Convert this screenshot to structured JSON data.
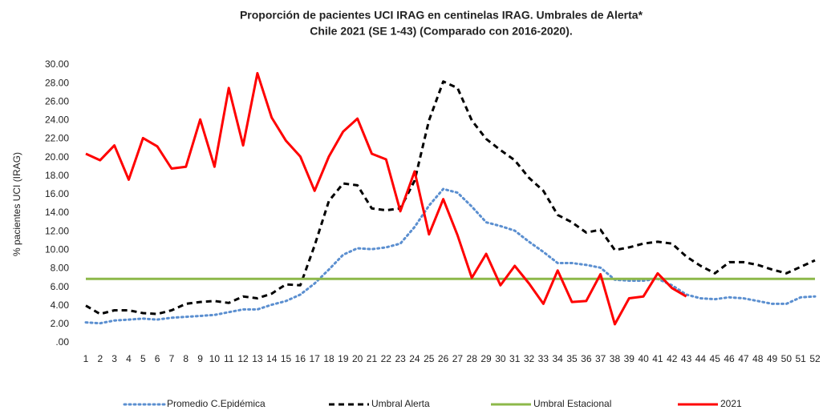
{
  "chart_data": {
    "type": "line",
    "title": "Proporción  de pacientes UCI IRAG en centinelas IRAG. Umbrales de Alerta*",
    "subtitle": "Chile  2021 (SE 1-43) (Comparado con 2016-2020).",
    "y_label": "%  pacientes UCI (IRAG)",
    "categories": [
      "1",
      "2",
      "3",
      "4",
      "5",
      "6",
      "7",
      "8",
      "9",
      "10",
      "11",
      "12",
      "13",
      "14",
      "15",
      "16",
      "17",
      "18",
      "19",
      "20",
      "21",
      "22",
      "23",
      "24",
      "25",
      "26",
      "27",
      "28",
      "29",
      "30",
      "31",
      "32",
      "33",
      "34",
      "35",
      "36",
      "37",
      "38",
      "39",
      "40",
      "41",
      "42",
      "43",
      "44",
      "45",
      "46",
      "47",
      "48",
      "49",
      "50",
      "51",
      "52"
    ],
    "ylim": [
      0,
      30
    ],
    "yticks": [
      {
        "value": 0,
        "label": ".00"
      },
      {
        "value": 2,
        "label": "2.00"
      },
      {
        "value": 4,
        "label": "4.00"
      },
      {
        "value": 6,
        "label": "6.00"
      },
      {
        "value": 8,
        "label": "8.00"
      },
      {
        "value": 10,
        "label": "10.00"
      },
      {
        "value": 12,
        "label": "12.00"
      },
      {
        "value": 14,
        "label": "14.00"
      },
      {
        "value": 16,
        "label": "16.00"
      },
      {
        "value": 18,
        "label": "18.00"
      },
      {
        "value": 20,
        "label": "20.00"
      },
      {
        "value": 22,
        "label": "22.00"
      },
      {
        "value": 24,
        "label": "24.00"
      },
      {
        "value": 26,
        "label": "26.00"
      },
      {
        "value": 28,
        "label": "28.00"
      },
      {
        "value": 30,
        "label": "30.00"
      }
    ],
    "series": [
      {
        "name": "Promedio  C.Epidémica",
        "color": "#5b8fd0",
        "style": "dotted",
        "values": [
          2.2,
          2.1,
          2.4,
          2.5,
          2.6,
          2.5,
          2.7,
          2.8,
          2.9,
          3.0,
          3.3,
          3.6,
          3.6,
          4.1,
          4.5,
          5.2,
          6.4,
          7.9,
          9.5,
          10.2,
          10.1,
          10.3,
          10.7,
          12.5,
          14.8,
          16.6,
          16.2,
          14.7,
          13.0,
          12.6,
          12.1,
          10.9,
          9.8,
          8.6,
          8.6,
          8.4,
          8.1,
          6.8,
          6.7,
          6.7,
          6.9,
          6.2,
          5.2,
          4.8,
          4.7,
          4.9,
          4.8,
          4.5,
          4.2,
          4.2,
          4.9,
          5.0
        ]
      },
      {
        "name": "Umbral Alerta",
        "color": "#000000",
        "style": "dashed",
        "values": [
          4.0,
          3.1,
          3.5,
          3.5,
          3.2,
          3.1,
          3.5,
          4.2,
          4.4,
          4.5,
          4.3,
          5.0,
          4.8,
          5.3,
          6.3,
          6.2,
          10.5,
          15.3,
          17.2,
          17.0,
          14.5,
          14.3,
          14.5,
          17.5,
          24.0,
          28.2,
          27.5,
          24.0,
          22.0,
          20.8,
          19.7,
          17.8,
          16.4,
          13.8,
          13.0,
          11.9,
          12.2,
          10.0,
          10.3,
          10.7,
          10.9,
          10.7,
          9.3,
          8.3,
          7.5,
          8.7,
          8.7,
          8.4,
          7.9,
          7.5,
          8.2,
          8.9
        ]
      },
      {
        "name": "Umbral Estacional",
        "color": "#8db84a",
        "style": "solid",
        "values": [
          6.9,
          6.9,
          6.9,
          6.9,
          6.9,
          6.9,
          6.9,
          6.9,
          6.9,
          6.9,
          6.9,
          6.9,
          6.9,
          6.9,
          6.9,
          6.9,
          6.9,
          6.9,
          6.9,
          6.9,
          6.9,
          6.9,
          6.9,
          6.9,
          6.9,
          6.9,
          6.9,
          6.9,
          6.9,
          6.9,
          6.9,
          6.9,
          6.9,
          6.9,
          6.9,
          6.9,
          6.9,
          6.9,
          6.9,
          6.9,
          6.9,
          6.9,
          6.9,
          6.9,
          6.9,
          6.9,
          6.9,
          6.9,
          6.9,
          6.9,
          6.9,
          6.9
        ]
      },
      {
        "name": "2021",
        "color": "#ff0000",
        "style": "solid",
        "values": [
          20.4,
          19.7,
          21.3,
          17.6,
          22.1,
          21.2,
          18.8,
          19.0,
          24.1,
          19.0,
          27.5,
          21.3,
          29.1,
          24.3,
          21.8,
          20.1,
          16.4,
          20.1,
          22.8,
          24.2,
          20.4,
          19.8,
          14.2,
          18.5,
          11.7,
          15.5,
          11.6,
          7.0,
          9.6,
          6.2,
          8.3,
          6.4,
          4.2,
          7.8,
          4.4,
          4.5,
          7.4,
          2.0,
          4.8,
          5.0,
          7.5,
          5.9,
          5.0,
          null,
          null,
          null,
          null,
          null,
          null,
          null,
          null,
          null
        ]
      }
    ]
  }
}
